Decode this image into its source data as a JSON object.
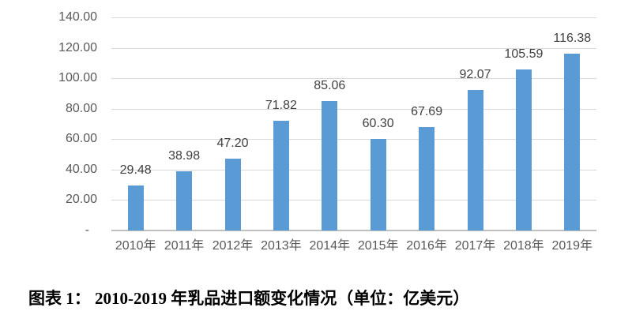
{
  "chart_data": {
    "type": "bar",
    "title": "",
    "xlabel": "",
    "ylabel": "",
    "categories": [
      "2010年",
      "2011年",
      "2012年",
      "2013年",
      "2014年",
      "2015年",
      "2016年",
      "2017年",
      "2018年",
      "2019年"
    ],
    "values": [
      29.48,
      38.98,
      47.2,
      71.82,
      85.06,
      60.3,
      67.69,
      92.07,
      105.59,
      116.38
    ],
    "value_labels": [
      "29.48",
      "38.98",
      "47.20",
      "71.82",
      "85.06",
      "60.30",
      "67.69",
      "92.07",
      "105.59",
      "116.38"
    ],
    "y_ticks": [
      {
        "value": 140,
        "label": "140.00"
      },
      {
        "value": 120,
        "label": "120.00"
      },
      {
        "value": 100,
        "label": "100.00"
      },
      {
        "value": 80,
        "label": "80.00"
      },
      {
        "value": 60,
        "label": "60.00"
      },
      {
        "value": 40,
        "label": "40.00"
      },
      {
        "value": 20,
        "label": "20.00"
      },
      {
        "value": 0,
        "label": "-"
      }
    ],
    "ylim": [
      0,
      140
    ],
    "grid": true,
    "legend_position": "none",
    "colors": {
      "bar": "#5B9BD5",
      "gridline": "#D9D9D9",
      "axis_line": "#BFBFBF",
      "tick_label": "#595959",
      "data_label": "#404040"
    }
  },
  "caption": {
    "text": "图表 1：  2010-2019 年乳品进口额变化情况（单位：亿美元）"
  }
}
